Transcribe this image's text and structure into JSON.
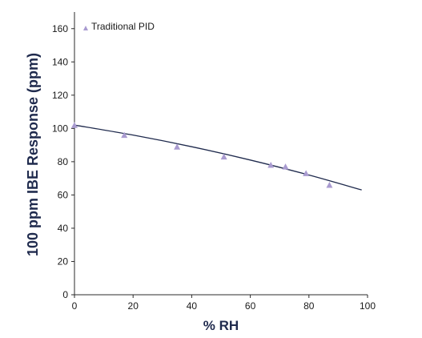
{
  "chart_data": {
    "type": "scatter",
    "title": "",
    "xlabel": "% RH",
    "ylabel": "100 ppm IBE Response (ppm)",
    "xlim": [
      0,
      100
    ],
    "ylim": [
      0,
      170
    ],
    "x_ticks": [
      0,
      20,
      40,
      60,
      80,
      100
    ],
    "y_ticks": [
      0,
      20,
      40,
      60,
      80,
      100,
      120,
      140,
      160
    ],
    "grid": false,
    "legend_position": "top-left",
    "series": [
      {
        "name": "Traditional PID",
        "marker": "triangle",
        "color": "#a99bd0",
        "points": [
          {
            "x": 0,
            "y": 102
          },
          {
            "x": 17,
            "y": 96
          },
          {
            "x": 35,
            "y": 89
          },
          {
            "x": 51,
            "y": 83
          },
          {
            "x": 67,
            "y": 78
          },
          {
            "x": 72,
            "y": 77
          },
          {
            "x": 79,
            "y": 73
          },
          {
            "x": 87,
            "y": 66
          }
        ]
      }
    ],
    "trendline": {
      "color": "#1f2a4d",
      "x_start": 0,
      "x_end": 98,
      "points": [
        {
          "x": 0,
          "y": 102
        },
        {
          "x": 20,
          "y": 96
        },
        {
          "x": 40,
          "y": 89
        },
        {
          "x": 60,
          "y": 81
        },
        {
          "x": 80,
          "y": 72
        },
        {
          "x": 98,
          "y": 63
        }
      ]
    }
  }
}
